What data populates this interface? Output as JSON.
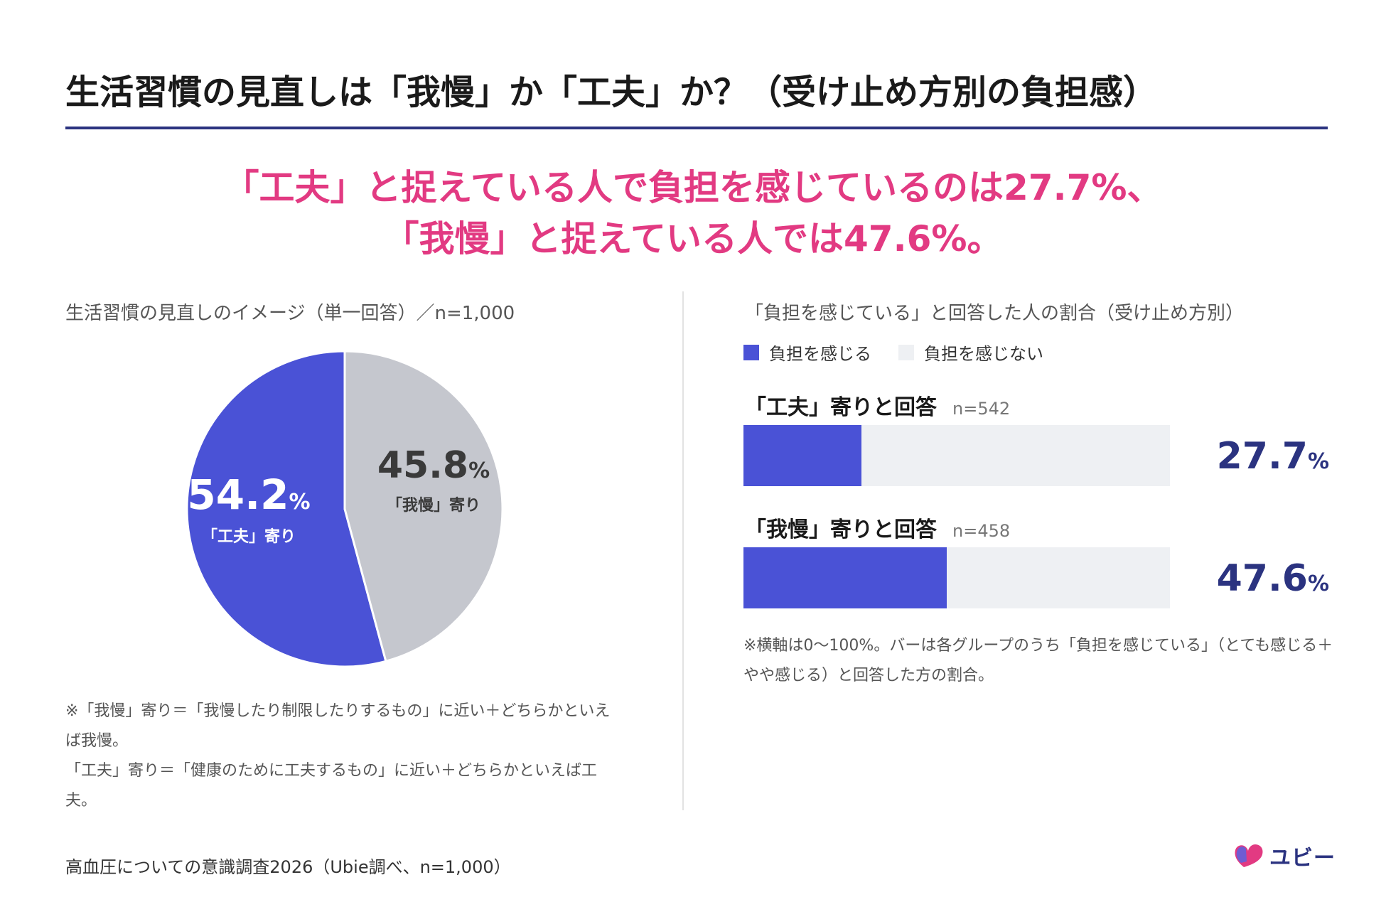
{
  "title": "生活習慣の見直しは「我慢」か「工夫」か？（受け止め方別の負担感）",
  "headline": {
    "line1": "「工夫」と捉えている人で負担を感じているのは27.7%、",
    "line2": "「我慢」と捉えている人では47.6%。"
  },
  "colors": {
    "accent": "#e23a82",
    "navy": "#2b3380",
    "bar_fill": "#4a52d6",
    "bar_track": "#eef0f3",
    "pie_kufu": "#4a52d6",
    "pie_gaman": "#c5c7ce"
  },
  "left": {
    "subtitle": "生活習慣の見直しのイメージ（単一回答）／n=1,000",
    "notes": [
      "※「我慢」寄り＝「我慢したり制限したりするもの」に近い＋どちらかといえば我慢。",
      "「工夫」寄り＝「健康のために工夫するもの」に近い＋どちらかといえば工夫。"
    ]
  },
  "right": {
    "subtitle": "「負担を感じている」と回答した人の割合（受け止め方別）",
    "legend": [
      "負担を感じる",
      "負担を感じない"
    ],
    "footnote": "※横軸は0〜100%。バーは各グループのうち「負担を感じている」（とても感じる＋やや感じる）と回答した方の割合。"
  },
  "chart_data": [
    {
      "type": "pie",
      "categories": [
        "「工夫」寄り",
        "「我慢」寄り"
      ],
      "values": [
        54.2,
        45.8
      ],
      "unit": "%"
    },
    {
      "type": "bar",
      "orientation": "horizontal",
      "categories": [
        "「工夫」寄りと回答",
        "「我慢」寄りと回答"
      ],
      "n_labels": [
        "n=542",
        "n=458"
      ],
      "series": [
        {
          "name": "負担を感じる",
          "values": [
            27.7,
            47.6
          ]
        },
        {
          "name": "負担を感じない",
          "values": [
            72.3,
            52.4
          ]
        }
      ],
      "xlim": [
        0,
        100
      ],
      "unit": "%"
    }
  ],
  "source": "高血圧についての意識調査2026（Ubie調べ、n=1,000）",
  "logo": {
    "text": "ユビー",
    "icon": "heart-icon"
  }
}
